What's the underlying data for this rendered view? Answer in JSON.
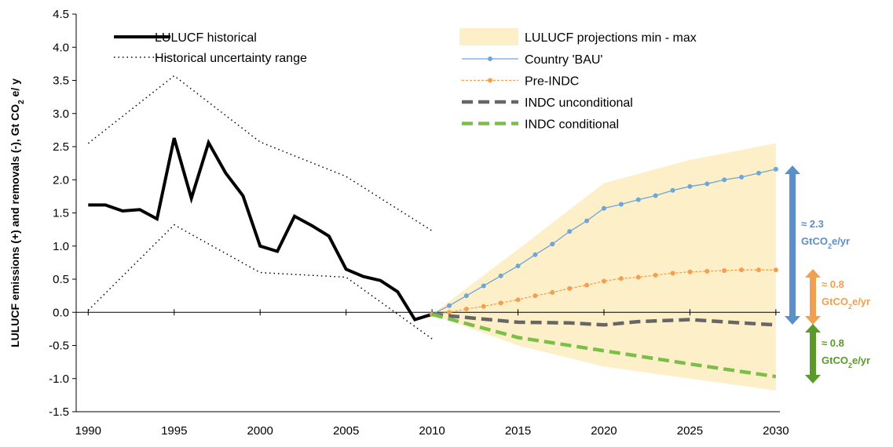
{
  "chart_data": {
    "type": "line",
    "y_label": [
      "LULUCF emissions (+) and removals (-), Gt CO",
      "2",
      " e/ y"
    ],
    "xlim": [
      1989.3,
      2030.6
    ],
    "ylim": [
      -1.5,
      4.5
    ],
    "xticks": [
      1990,
      1995,
      2000,
      2005,
      2010,
      2015,
      2020,
      2025,
      2030
    ],
    "yticks": [
      -1.5,
      {
        "value": -1,
        "label": "-1.0"
      },
      -0.5,
      {
        "value": 0,
        "label": "0.0"
      },
      0.5,
      {
        "value": 1,
        "label": "1.0"
      },
      1.5,
      {
        "value": 2,
        "label": "2.0"
      },
      2.5,
      {
        "value": 3,
        "label": "3.0"
      },
      3.5,
      {
        "value": 4,
        "label": "4.0"
      },
      4.5
    ],
    "band": {
      "name": "LULUCF projections min - max",
      "color": "#fdefc8",
      "x": [
        2010,
        2015,
        2020,
        2025,
        2030
      ],
      "max": [
        -0.03,
        0.95,
        1.95,
        2.3,
        2.55
      ],
      "min": [
        -0.03,
        -0.5,
        -0.82,
        -1.0,
        -1.18
      ]
    },
    "uncertainty": {
      "name": "Historical uncertainty range",
      "color": "#000000",
      "x": [
        1990,
        1995,
        2000,
        2005,
        2010
      ],
      "upper": [
        2.55,
        3.57,
        2.57,
        2.05,
        1.23
      ],
      "lower": [
        0.03,
        1.32,
        0.6,
        0.53,
        -0.4
      ]
    },
    "series": [
      {
        "name": "LULUCF historical",
        "color": "#000000",
        "style": "solid",
        "x": [
          1990,
          1991,
          1992,
          1993,
          1994,
          1995,
          1996,
          1997,
          1998,
          1999,
          2000,
          2001,
          2002,
          2003,
          2004,
          2005,
          2006,
          2007,
          2008,
          2009,
          2010
        ],
        "values": [
          1.62,
          1.62,
          1.53,
          1.55,
          1.41,
          2.63,
          1.72,
          2.56,
          2.1,
          1.76,
          1.0,
          0.92,
          1.45,
          1.31,
          1.15,
          0.65,
          0.54,
          0.48,
          0.31,
          -0.11,
          -0.03
        ]
      },
      {
        "name": "Country 'BAU'",
        "color": "#6fa5d8",
        "style": "marker",
        "x": [
          2010,
          2011,
          2012,
          2013,
          2014,
          2015,
          2016,
          2017,
          2018,
          2019,
          2020,
          2021,
          2022,
          2023,
          2024,
          2025,
          2026,
          2027,
          2028,
          2029,
          2030
        ],
        "values": [
          -0.03,
          0.1,
          0.25,
          0.4,
          0.55,
          0.7,
          0.87,
          1.03,
          1.22,
          1.38,
          1.57,
          1.63,
          1.7,
          1.76,
          1.84,
          1.9,
          1.94,
          2.0,
          2.04,
          2.1,
          2.16
        ]
      },
      {
        "name": "Pre-INDC",
        "color": "#f0a050",
        "style": "dashed-marker",
        "x": [
          2010,
          2011,
          2012,
          2013,
          2014,
          2015,
          2016,
          2017,
          2018,
          2019,
          2020,
          2021,
          2022,
          2023,
          2024,
          2025,
          2026,
          2027,
          2028,
          2029,
          2030
        ],
        "values": [
          -0.03,
          0.0,
          0.05,
          0.09,
          0.14,
          0.19,
          0.25,
          0.3,
          0.36,
          0.41,
          0.47,
          0.51,
          0.53,
          0.56,
          0.59,
          0.61,
          0.62,
          0.63,
          0.64,
          0.64,
          0.64
        ]
      },
      {
        "name": "INDC unconditional",
        "color": "#666666",
        "style": "dash",
        "x": [
          2010,
          2015,
          2018,
          2020,
          2022,
          2025,
          2028,
          2030
        ],
        "values": [
          -0.03,
          -0.15,
          -0.16,
          -0.19,
          -0.14,
          -0.11,
          -0.16,
          -0.19
        ]
      },
      {
        "name": "INDC conditional",
        "color": "#7bbf4a",
        "style": "dash",
        "x": [
          2010,
          2015,
          2020,
          2025,
          2030
        ],
        "values": [
          -0.03,
          -0.38,
          -0.58,
          -0.78,
          -0.97
        ]
      }
    ],
    "annotations": [
      {
        "label": "≈ 2.3",
        "unit": [
          "GtCO",
          "2",
          "e/yr"
        ],
        "color": "#5b8fc9"
      },
      {
        "label": "≈ 0.8",
        "unit": [
          "GtCO",
          "2",
          "e/yr"
        ],
        "color": "#f0a050"
      },
      {
        "label": "≈ 0.8",
        "unit": [
          "GtCO",
          "2",
          "e/yr"
        ],
        "color": "#5a9a2a"
      }
    ]
  }
}
